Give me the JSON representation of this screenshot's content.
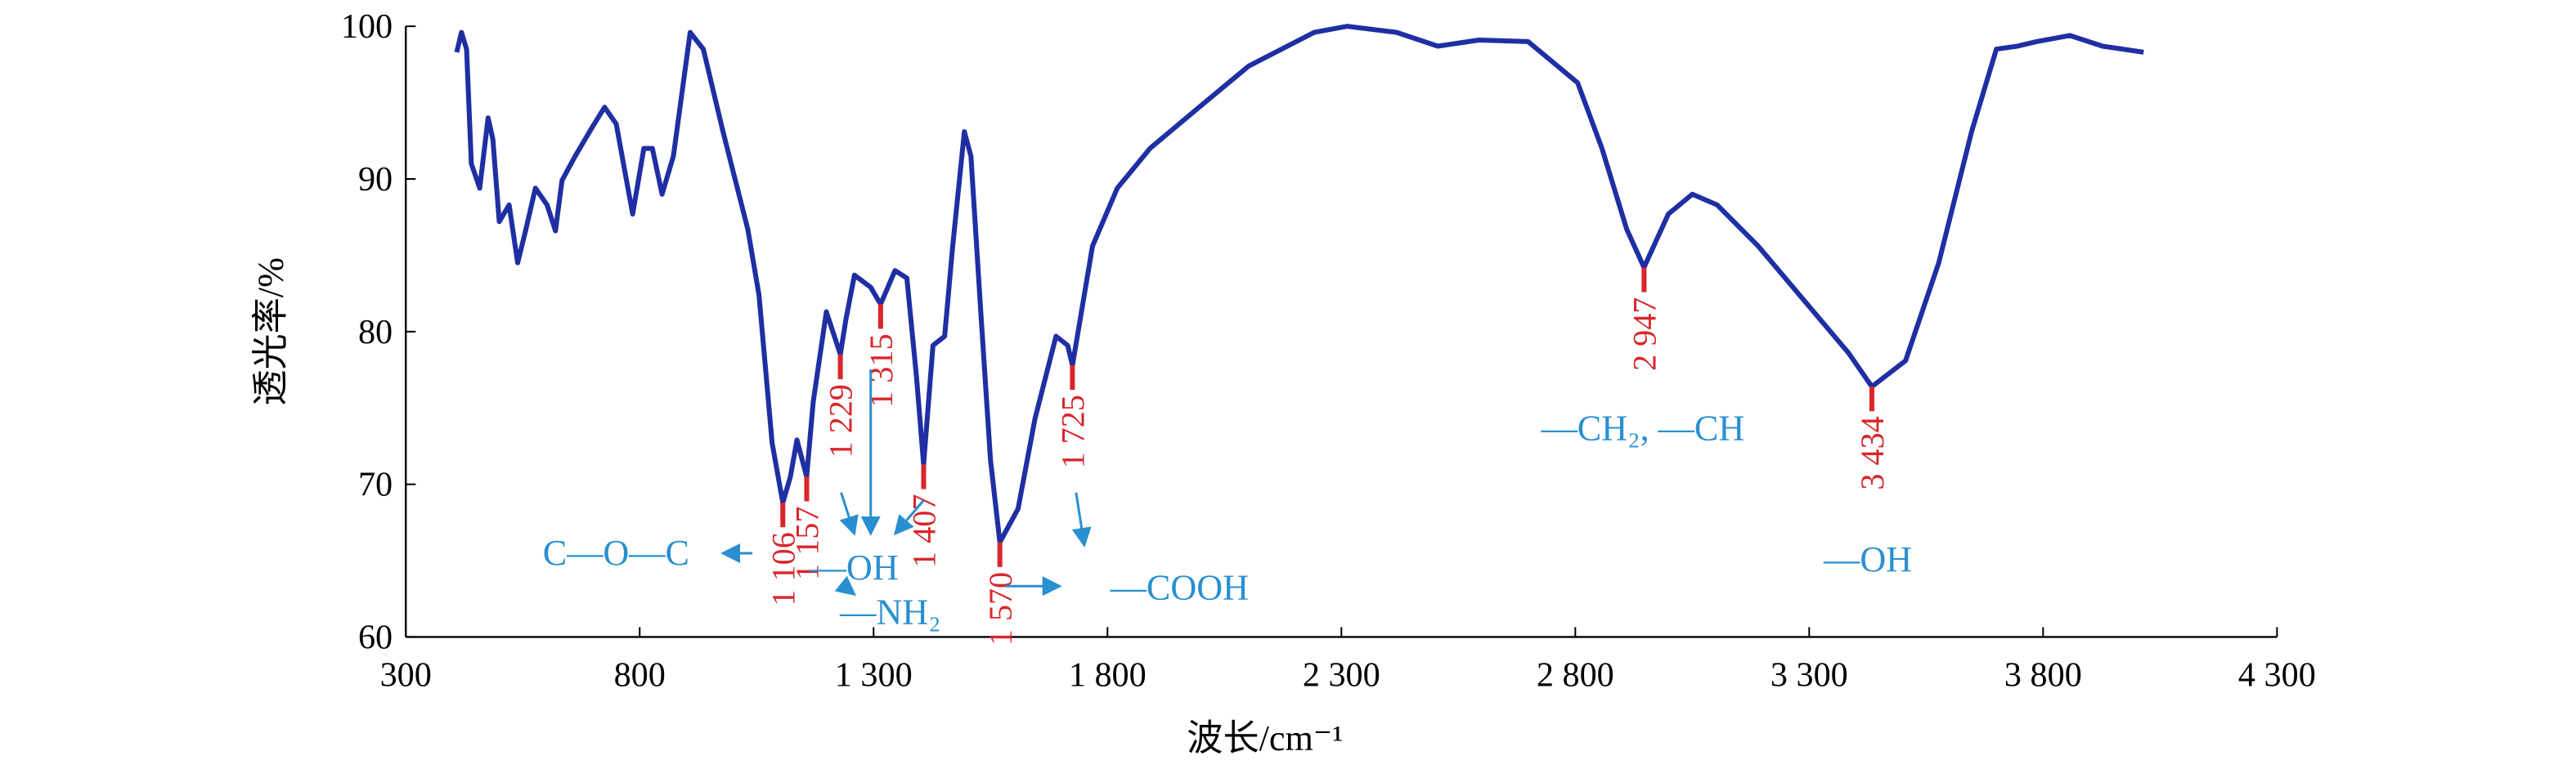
{
  "chart_data": {
    "type": "line",
    "xlabel": "波长/cm⁻¹",
    "ylabel": "透光率/%",
    "xlim": [
      300,
      4300
    ],
    "ylim": [
      60,
      100
    ],
    "xticks": [
      300,
      800,
      {
        "value": 1300,
        "label": "1 300"
      },
      {
        "value": 1800,
        "label": "1 800"
      },
      {
        "value": 2300,
        "label": "2 300"
      },
      {
        "value": 2800,
        "label": "2 800"
      },
      {
        "value": 3300,
        "label": "3 300"
      },
      {
        "value": 3800,
        "label": "3 800"
      },
      {
        "value": 4300,
        "label": "4 300"
      }
    ],
    "yticks": [
      60,
      70,
      80,
      90,
      100
    ],
    "series": [
      {
        "color": "#1f2fa3",
        "x": [
          409,
          419,
          430,
          440,
          458,
          476,
          486,
          500,
          521,
          539,
          556,
          577,
          602,
          620,
          634,
          662,
          697,
          725,
          750,
          785,
          809,
          827,
          848,
          872,
          908,
          936,
          978,
          1031,
          1055,
          1083,
          1106,
          1122,
          1136,
          1157,
          1171,
          1199,
          1229,
          1241,
          1259,
          1294,
          1315,
          1346,
          1371,
          1392,
          1407,
          1427,
          1452,
          1469,
          1494,
          1508,
          1529,
          1550,
          1570,
          1609,
          1645,
          1690,
          1715,
          1725,
          1768,
          1821,
          1891,
          1996,
          2102,
          2242,
          2312,
          2418,
          2506,
          2594,
          2699,
          2805,
          2857,
          2910,
          2947,
          2999,
          3050,
          3103,
          3191,
          3296,
          3384,
          3434,
          3506,
          3577,
          3647,
          3700,
          3745,
          3787,
          3857,
          3927,
          4015
        ],
        "values": [
          98.3,
          99.6,
          98.5,
          91,
          89.4,
          94,
          92.6,
          87.2,
          88.3,
          84.5,
          86.6,
          89.4,
          88.3,
          86.6,
          89.9,
          91.5,
          93.3,
          94.7,
          93.6,
          87.7,
          92,
          92,
          89,
          91.5,
          99.6,
          98.5,
          93.1,
          86.7,
          82.4,
          72.7,
          68.8,
          70.5,
          72.9,
          70.5,
          75.4,
          81.3,
          78.5,
          80.8,
          83.7,
          82.9,
          81.8,
          84,
          83.5,
          77,
          71.3,
          79.1,
          79.7,
          85.6,
          93.1,
          91.5,
          81.3,
          71.6,
          66.2,
          68.4,
          74.3,
          79.7,
          79.1,
          77.8,
          85.6,
          89.4,
          92,
          94.7,
          97.4,
          99.6,
          100,
          99.6,
          98.7,
          99.1,
          99,
          96.3,
          92,
          86.7,
          84.2,
          87.7,
          89,
          88.3,
          85.6,
          81.8,
          78.6,
          76.4,
          78.1,
          84.5,
          93.1,
          98.5,
          98.7,
          99,
          99.4,
          98.7,
          98.3
        ]
      }
    ],
    "peaks": [
      {
        "x": 1106,
        "y": 68.8,
        "label": "1 106"
      },
      {
        "x": 1157,
        "y": 70.5,
        "label": "1 157"
      },
      {
        "x": 1229,
        "y": 78.5,
        "label": "1 229"
      },
      {
        "x": 1315,
        "y": 81.8,
        "label": "1 315"
      },
      {
        "x": 1407,
        "y": 71.3,
        "label": "1 407"
      },
      {
        "x": 1570,
        "y": 66.2,
        "label": "1 570"
      },
      {
        "x": 1725,
        "y": 77.8,
        "label": "1 725"
      },
      {
        "x": 2947,
        "y": 84.2,
        "label": "2 947"
      },
      {
        "x": 3434,
        "y": 76.4,
        "label": "3 434"
      }
    ],
    "peak_color": "#d9262b",
    "annotations": [
      "C—O—C",
      "—OH",
      "—NH₂",
      "—COOH",
      "—CH₂, —CH",
      "—OH"
    ],
    "annotation_color": "#2a8fd0"
  }
}
